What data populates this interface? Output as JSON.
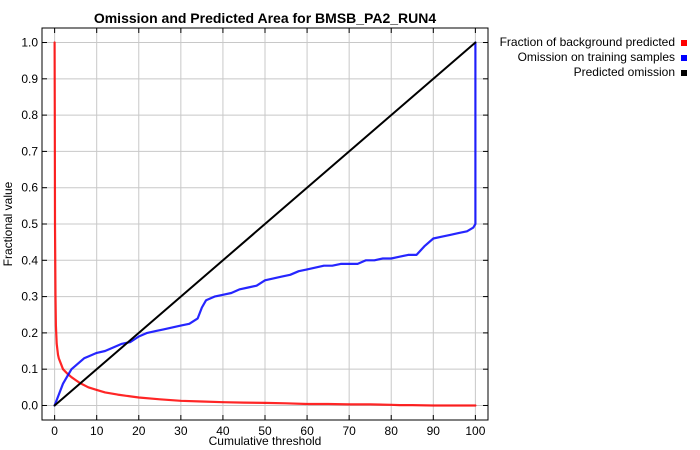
{
  "chart_data": {
    "type": "line",
    "title": "Omission and Predicted Area for BMSB_PA2_RUN4",
    "xlabel": "Cumulative threshold",
    "ylabel": "Fractional value",
    "xlim": [
      -3,
      103
    ],
    "ylim": [
      -0.04,
      1.04
    ],
    "xticks": [
      0,
      10,
      20,
      30,
      40,
      50,
      60,
      70,
      80,
      90,
      100
    ],
    "yticks": [
      0.0,
      0.1,
      0.2,
      0.3,
      0.4,
      0.5,
      0.6,
      0.7,
      0.8,
      0.9,
      1.0
    ],
    "ytick_labels": [
      "0.0",
      "0.1",
      "0.2",
      "0.3",
      "0.4",
      "0.5",
      "0.6",
      "0.7",
      "0.8",
      "0.9",
      "1.0"
    ],
    "grid": true,
    "legend_position": "outside-top-right",
    "series": [
      {
        "name": "Fraction of background predicted",
        "color": "#ff0000",
        "x": [
          0,
          0.05,
          0.1,
          0.2,
          0.3,
          0.5,
          0.8,
          1,
          1.5,
          2,
          3,
          4,
          5,
          6,
          8,
          10,
          12,
          15,
          18,
          20,
          25,
          30,
          35,
          40,
          45,
          50,
          55,
          60,
          65,
          70,
          75,
          80,
          82,
          85,
          90,
          95,
          100
        ],
        "y": [
          1.0,
          0.8,
          0.5,
          0.3,
          0.22,
          0.17,
          0.14,
          0.13,
          0.115,
          0.1,
          0.088,
          0.078,
          0.07,
          0.062,
          0.05,
          0.043,
          0.036,
          0.03,
          0.025,
          0.022,
          0.017,
          0.013,
          0.011,
          0.009,
          0.008,
          0.007,
          0.006,
          0.004,
          0.004,
          0.003,
          0.003,
          0.002,
          0.001,
          0.001,
          0.0,
          0.0,
          0.0
        ]
      },
      {
        "name": "Omission on training samples",
        "color": "#0000ff",
        "x": [
          0,
          1,
          2,
          3,
          4,
          5,
          6,
          7,
          8,
          10,
          12,
          14,
          16,
          18,
          20,
          22,
          24,
          26,
          28,
          30,
          32,
          34,
          35,
          36,
          38,
          40,
          42,
          44,
          46,
          48,
          50,
          52,
          54,
          56,
          58,
          60,
          62,
          64,
          66,
          68,
          70,
          72,
          74,
          76,
          78,
          80,
          82,
          84,
          86,
          88,
          90,
          92,
          94,
          96,
          98,
          99.5,
          100,
          100
        ],
        "y": [
          0.0,
          0.03,
          0.06,
          0.08,
          0.1,
          0.11,
          0.12,
          0.13,
          0.135,
          0.145,
          0.15,
          0.16,
          0.17,
          0.175,
          0.19,
          0.2,
          0.205,
          0.21,
          0.215,
          0.22,
          0.225,
          0.24,
          0.27,
          0.29,
          0.3,
          0.305,
          0.31,
          0.32,
          0.325,
          0.33,
          0.345,
          0.35,
          0.355,
          0.36,
          0.37,
          0.375,
          0.38,
          0.385,
          0.385,
          0.39,
          0.39,
          0.39,
          0.4,
          0.4,
          0.405,
          0.405,
          0.41,
          0.415,
          0.415,
          0.44,
          0.46,
          0.465,
          0.47,
          0.475,
          0.48,
          0.49,
          0.5,
          1.0
        ]
      },
      {
        "name": "Predicted omission",
        "color": "#000000",
        "x": [
          0,
          100
        ],
        "y": [
          0.0,
          1.0
        ]
      }
    ]
  }
}
